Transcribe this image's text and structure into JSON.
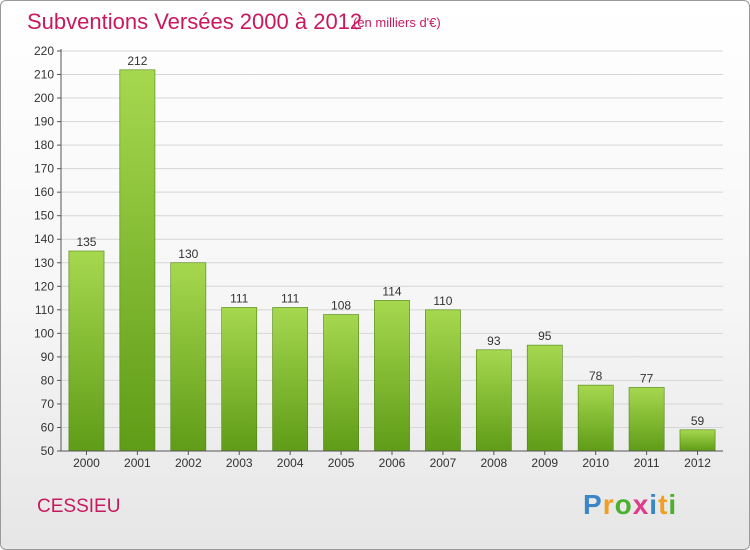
{
  "header": {
    "title": "Subventions Versées 2000 à 2012",
    "subtitle": "(en milliers d'€)"
  },
  "footer": {
    "commune": "CESSIEU",
    "logo_letters": [
      "P",
      "r",
      "o",
      "x",
      "i",
      "t",
      "i"
    ],
    "logo_colors": [
      "#3a86c8",
      "#f0a020",
      "#4caf30",
      "#e03a8a",
      "#3a86c8",
      "#f0a020",
      "#4caf30"
    ]
  },
  "colors": {
    "bar_top": "#a6d84f",
    "bar_bottom": "#5f9c17",
    "bar_edge": "#4d8210",
    "axis": "#555555",
    "grid": "#d6d6d6",
    "accent": "#c8195f"
  },
  "chart_data": {
    "type": "bar",
    "title": "Subventions Versées 2000 à 2012",
    "subtitle": "(en milliers d'€)",
    "xlabel": "",
    "ylabel": "",
    "categories": [
      "2000",
      "2001",
      "2002",
      "2003",
      "2004",
      "2005",
      "2006",
      "2007",
      "2008",
      "2009",
      "2010",
      "2011",
      "2012"
    ],
    "values": [
      135,
      212,
      130,
      111,
      111,
      108,
      114,
      110,
      93,
      95,
      78,
      77,
      59
    ],
    "ylim": [
      50,
      220
    ],
    "yticks": [
      50,
      60,
      70,
      80,
      90,
      100,
      110,
      120,
      130,
      140,
      150,
      160,
      170,
      180,
      190,
      200,
      210,
      220
    ],
    "grid": true,
    "legend": "none"
  }
}
